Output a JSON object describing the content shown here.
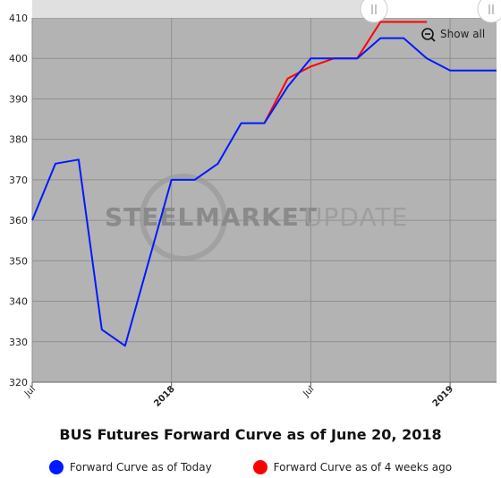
{
  "chart_data": {
    "type": "line",
    "title": "BUS Futures Forward Curve as of June 20, 2018",
    "xlabel": "",
    "ylabel": "",
    "ylim": [
      320,
      410
    ],
    "yticks": [
      320,
      330,
      340,
      350,
      360,
      370,
      380,
      390,
      400,
      410
    ],
    "xlim": [
      "2017-07",
      "2019-03"
    ],
    "xticks": [
      {
        "x": "2017-07",
        "label": "Jul",
        "bold": false
      },
      {
        "x": "2018-01",
        "label": "2018",
        "bold": true
      },
      {
        "x": "2018-07",
        "label": "Jul",
        "bold": false
      },
      {
        "x": "2019-01",
        "label": "2019",
        "bold": true
      }
    ],
    "grid": true,
    "legend_position": "bottom",
    "series": [
      {
        "name": "Forward Curve as of Today",
        "color": "#0019ff",
        "points": [
          {
            "x": "2017-07",
            "y": 360
          },
          {
            "x": "2017-08",
            "y": 374
          },
          {
            "x": "2017-09",
            "y": 375
          },
          {
            "x": "2017-10",
            "y": 333
          },
          {
            "x": "2017-11",
            "y": 329
          },
          {
            "x": "2018-01",
            "y": 370
          },
          {
            "x": "2018-02",
            "y": 370
          },
          {
            "x": "2018-03",
            "y": 374
          },
          {
            "x": "2018-04",
            "y": 384
          },
          {
            "x": "2018-05",
            "y": 384
          },
          {
            "x": "2018-06",
            "y": 393
          },
          {
            "x": "2018-07",
            "y": 400
          },
          {
            "x": "2018-08",
            "y": 400
          },
          {
            "x": "2018-09",
            "y": 400
          },
          {
            "x": "2018-10",
            "y": 405
          },
          {
            "x": "2018-11",
            "y": 405
          },
          {
            "x": "2018-12",
            "y": 400
          },
          {
            "x": "2019-01",
            "y": 397
          },
          {
            "x": "2019-02",
            "y": 397
          },
          {
            "x": "2019-03",
            "y": 397
          }
        ]
      },
      {
        "name": "Forward Curve as of 4 weeks ago",
        "color": "#ff0000",
        "points": [
          {
            "x": "2018-05",
            "y": 384
          },
          {
            "x": "2018-06",
            "y": 395
          },
          {
            "x": "2018-07",
            "y": 398
          },
          {
            "x": "2018-08",
            "y": 400
          },
          {
            "x": "2018-09",
            "y": 400
          },
          {
            "x": "2018-10",
            "y": 409
          },
          {
            "x": "2018-11",
            "y": 409
          },
          {
            "x": "2018-12",
            "y": 409
          }
        ]
      }
    ]
  },
  "watermark": {
    "part1": "STEEL",
    "part2": "MARKET",
    "part3": "UPDATE"
  },
  "controls": {
    "show_all_label": "Show all"
  },
  "colors": {
    "plot_bg": "#b3b3b3",
    "grid": "#8f8f8f",
    "navigator": "#e0e0e0"
  }
}
